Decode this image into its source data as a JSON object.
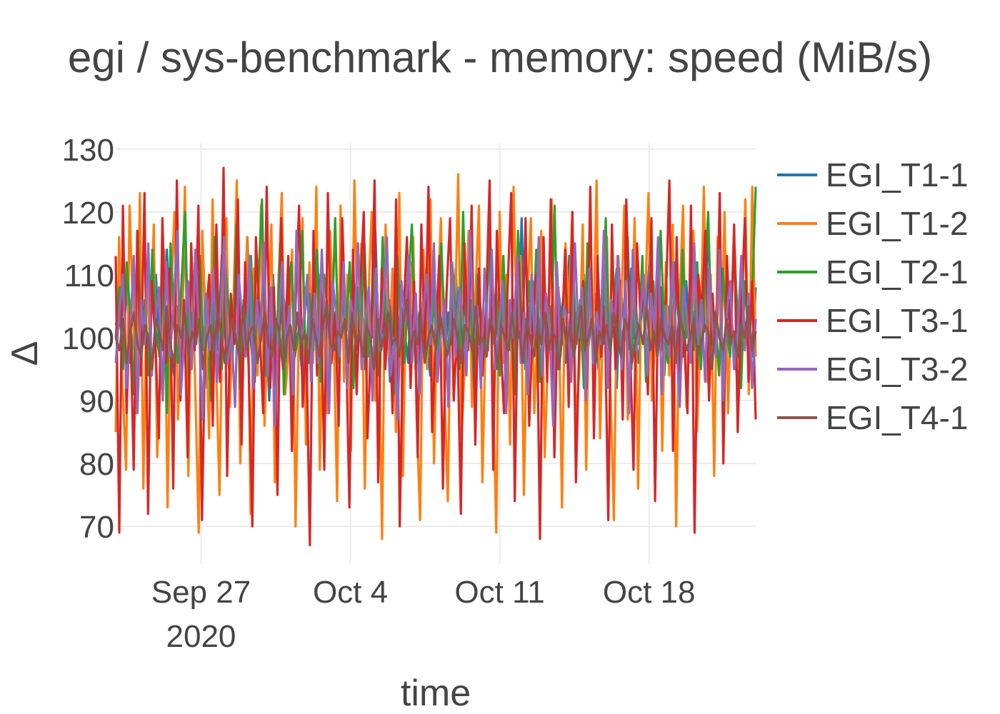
{
  "chart_data": {
    "type": "line",
    "title": "egi / sys-benchmark - memory: speed (MiB/s)",
    "xlabel": "time",
    "ylabel": "Δ",
    "x_range": [
      "2020-09-23",
      "2020-10-23"
    ],
    "ylim": [
      64,
      131
    ],
    "y_ticks": [
      70,
      80,
      90,
      100,
      110,
      120,
      130
    ],
    "y_tick_labels": [
      "70",
      "80",
      "90",
      "100",
      "110",
      "120",
      "130"
    ],
    "x_ticks": [
      "2020-09-27",
      "2020-10-04",
      "2020-10-11",
      "2020-10-18"
    ],
    "x_tick_labels": [
      {
        "line1": "Sep 27",
        "line2": "2020"
      },
      {
        "line1": "Oct 4",
        "line2": ""
      },
      {
        "line1": "Oct 11",
        "line2": ""
      },
      {
        "line1": "Oct 18",
        "line2": ""
      }
    ],
    "grid": true,
    "legend_position": "right",
    "sampling": "approximately every 4 hours, 2020-09-23 00:00 to 2020-10-23 00:00; values approximate",
    "series": [
      {
        "name": "EGI_T1-1",
        "color": "#1f77b4",
        "values": [
          102,
          104,
          98,
          109,
          96,
          101,
          112,
          99,
          103,
          95,
          107,
          110,
          97,
          100,
          114,
          99,
          94,
          105,
          101,
          118,
          96,
          103,
          99,
          108,
          111,
          92,
          101,
          106,
          98,
          113,
          100,
          95,
          104,
          109,
          97,
          102,
          116,
          99,
          93,
          107,
          101,
          104,
          90,
          110,
          98,
          103,
          106,
          96,
          112,
          99,
          101,
          94,
          108,
          102,
          97,
          115,
          100,
          105,
          92,
          109,
          99,
          103,
          111,
          96,
          101,
          107,
          98,
          113,
          95,
          104,
          100,
          117,
          97,
          102,
          108,
          93,
          110,
          99,
          105,
          101,
          96,
          112,
          103,
          98,
          106,
          100,
          94,
          109,
          102,
          115,
          97,
          104,
          99,
          111,
          95,
          103,
          107,
          100,
          92,
          108,
          101,
          97,
          114,
          99,
          104,
          96,
          110,
          102,
          98,
          106,
          100,
          119,
          95,
          103,
          109,
          97,
          101,
          112,
          99,
          105,
          94,
          108,
          102,
          96,
          113,
          100,
          104,
          98,
          110,
          97,
          103,
          107,
          95,
          101,
          116,
          99,
          104,
          92,
          109,
          102,
          98,
          111,
          100,
          96,
          106,
          103,
          113,
          97,
          101,
          108,
          94,
          105,
          99,
          112,
          102,
          97,
          109,
          100,
          104,
          95,
          107,
          101,
          118,
          98,
          103,
          110,
          96,
          102,
          106,
          99,
          93,
          111,
          101,
          104,
          97,
          108
        ]
      },
      {
        "name": "EGI_T1-2",
        "color": "#ff7f0e",
        "values": [
          85,
          116,
          92,
          79,
          121,
          104,
          88,
          123,
          76,
          110,
          98,
          118,
          81,
          95,
          114,
          73,
          107,
          120,
          87,
          101,
          124,
          78,
          112,
          92,
          69,
          117,
          103,
          84,
          122,
          96,
          75,
          109,
          119,
          89,
          105,
          125,
          80,
          99,
          116,
          72,
          111,
          94,
          121,
          86,
          102,
          118,
          77,
          108,
          123,
          91,
          98,
          114,
          70,
          104,
          119,
          83,
          112,
          96,
          124,
          79,
          107,
          88,
          117,
          101,
          74,
          121,
          93,
          110,
          82,
          125,
          99,
          115,
          76,
          106,
          120,
          90,
          103,
          68,
          118,
          97,
          111,
          85,
          123,
          78,
          109,
          100,
          116,
          87,
          71,
          114,
          95,
          122,
          80,
          105,
          119,
          92,
          74,
          112,
          101,
          126,
          84,
          98,
          117,
          89,
          107,
          121,
          77,
          103,
          115,
          93,
          69,
          120,
          96,
          110,
          83,
          124,
          100,
          113,
          75,
          106,
          119,
          88,
          102,
          117,
          81,
          98,
          122,
          91,
          108,
          73,
          115,
          104,
          120,
          86,
          95,
          118,
          79,
          111,
          99,
          125,
          84,
          107,
          116,
          92,
          71,
          113,
          102,
          121,
          87,
          97,
          119,
          76,
          109,
          105,
          123,
          90,
          100,
          115,
          82,
          112,
          94,
          118,
          70,
          106,
          121,
          89,
          103,
          117,
          85,
          99,
          124,
          93,
          110,
          78,
          116,
          98,
          120,
          88,
          107,
          114,
          95,
          101,
          122,
          91,
          124,
          97
        ]
      },
      {
        "name": "EGI_T2-1",
        "color": "#2ca02c",
        "values": [
          100,
          108,
          95,
          112,
          103,
          91,
          117,
          99,
          106,
          94,
          114,
          101,
          97,
          110,
          88,
          115,
          102,
          96,
          109,
          120,
          93,
          104,
          99,
          113,
          98,
          107,
          90,
          116,
          101,
          95,
          111,
          104,
          97,
          118,
          92,
          106,
          100,
          113,
          96,
          109,
          122,
          94,
          103,
          108,
          99,
          115,
          91,
          105,
          112,
          97,
          101,
          117,
          95,
          107,
          98,
          114,
          93,
          110,
          104,
          99,
          119,
          96,
          106,
          101,
          112,
          92,
          108,
          100,
          115,
          97,
          103,
          110,
          94,
          116,
          99,
          105,
          91,
          113,
          102,
          96,
          109,
          118,
          95,
          104,
          100,
          111,
          97,
          107,
          93,
          115,
          101,
          98,
          112,
          104,
          95,
          120,
          99,
          106,
          92,
          110,
          103,
          97,
          116,
          100,
          108,
          94,
          113,
          99,
          105,
          91,
          117,
          102,
          96,
          109,
          100,
          114,
          93,
          107,
          101,
          98,
          121,
          95,
          104,
          110,
          97,
          112,
          99,
          106,
          92,
          115,
          103,
          96,
          108,
          100,
          119,
          94,
          105,
          111,
          98,
          102,
          116,
          95,
          107,
          99,
          113,
          93,
          104,
          109,
          97,
          117,
          101,
          96,
          110,
          103,
          92,
          114,
          100,
          106,
          98,
          112,
          95,
          108,
          120,
          99,
          103,
          94,
          111,
          101,
          97,
          115,
          104,
          92,
          109,
          100,
          106,
          124
        ]
      },
      {
        "name": "EGI_T3-1",
        "color": "#d62728",
        "values": [
          113,
          69,
          121,
          88,
          104,
          79,
          117,
          94,
          123,
          72,
          109,
          100,
          84,
          119,
          96,
          111,
          76,
          125,
          90,
          106,
          81,
          115,
          98,
          121,
          71,
          103,
          110,
          86,
          118,
          93,
          127,
          78,
          107,
          99,
          122,
          83,
          112,
          95,
          70,
          116,
          102,
          88,
          124,
          92,
          108,
          75,
          119,
          97,
          113,
          82,
          105,
          121,
          89,
          100,
          67,
          117,
          94,
          110,
          79,
          123,
          96,
          104,
          86,
          119,
          101,
          73,
          114,
          91,
          108,
          120,
          84,
          99,
          125,
          77,
          111,
          95,
          106,
          88,
          122,
          70,
          103,
          116,
          92,
          109,
          81,
          118,
          97,
          124,
          85,
          100,
          113,
          76,
          107,
          119,
          90,
          102,
          72,
          115,
          98,
          121,
          83,
          111,
          94,
          105,
          125,
          79,
          117,
          100,
          88,
          108,
          123,
          74,
          112,
          96,
          119,
          86,
          103,
          110,
          68,
          116,
          93,
          122,
          81,
          106,
          99,
          114,
          89,
          120,
          77,
          101,
          109,
          92,
          124,
          84,
          113,
          97,
          105,
          71,
          118,
          95,
          111,
          87,
          122,
          100,
          79,
          115,
          103,
          108,
          91,
          119,
          74,
          112,
          98,
          106,
          125,
          82,
          116,
          94,
          101,
          88,
          121,
          69,
          110,
          104,
          117,
          90,
          107,
          97,
          123,
          80,
          113,
          99,
          118,
          85,
          105,
          119,
          93,
          109,
          87
        ]
      },
      {
        "name": "EGI_T3-2",
        "color": "#9467bd",
        "values": [
          96,
          104,
          110,
          92,
          101,
          113,
          88,
          106,
          99,
          115,
          94,
          103,
          108,
          90,
          112,
          97,
          105,
          117,
          91,
          100,
          109,
          95,
          114,
          102,
          87,
          107,
          98,
          111,
          93,
          104,
          116,
          96,
          101,
          89,
          110,
          103,
          97,
          113,
          92,
          106,
          100,
          115,
          94,
          108,
          86,
          102,
          112,
          98,
          105,
          91,
          117,
          99,
          103,
          110,
          93,
          107,
          96,
          114,
          100,
          88,
          109,
          104,
          97,
          112,
          92,
          106,
          101,
          115,
          95,
          103,
          108,
          90,
          111,
          98,
          105,
          116,
          94,
          100,
          87,
          109,
          102,
          113,
          96,
          107,
          91,
          104,
          110,
          99,
          115,
          93,
          101,
          106,
          89,
          112,
          97,
          108,
          103,
          94,
          117,
          100,
          105,
          92,
          111,
          98,
          114,
          95,
          102,
          109,
          88,
          106,
          100,
          113,
          96,
          104,
          91,
          110,
          99,
          116,
          94,
          107,
          101,
          86,
          112,
          97,
          105,
          103,
          93,
          115,
          100,
          108,
          90,
          111,
          96,
          104,
          99,
          117,
          92,
          106,
          102,
          113,
          95,
          109,
          88,
          114,
          98,
          103,
          110,
          94,
          107,
          101,
          116,
          91,
          105,
          97,
          112,
          100,
          89,
          108,
          103,
          96,
          115,
          99,
          106,
          93,
          111,
          102,
          97,
          114,
          90,
          104,
          109,
          95,
          101,
          113,
          98,
          107,
          92,
          103
        ]
      },
      {
        "name": "EGI_T4-1",
        "color": "#8c564b",
        "values": [
          100,
          98,
          103,
          96,
          101,
          104,
          99,
          97,
          102,
          100,
          95,
          103,
          101,
          98,
          105,
          99,
          96,
          102,
          100,
          104,
          97,
          101,
          99,
          103,
          95,
          100,
          102,
          98,
          104,
          101,
          96,
          99,
          103,
          100,
          97,
          105,
          98,
          101,
          102,
          96,
          100,
          104,
          99,
          97,
          103,
          101,
          95,
          100,
          102,
          98,
          104,
          99,
          101,
          96,
          103,
          100,
          97,
          102,
          105,
          99,
          98,
          101,
          100,
          103,
          96,
          104,
          99,
          101,
          97,
          102,
          100,
          95,
          103,
          98,
          101,
          104,
          99,
          100,
          97,
          102,
          106,
          98,
          101,
          99,
          103,
          96,
          100,
          102,
          98,
          104,
          101,
          97,
          99,
          103,
          100,
          96,
          102,
          101,
          98,
          105,
          99,
          100,
          97,
          103,
          101,
          95,
          102,
          100,
          98,
          104,
          99,
          101,
          96,
          103,
          100,
          97,
          102,
          99,
          104,
          98,
          101,
          100,
          95,
          103,
          99,
          102,
          97,
          101,
          105,
          98,
          100,
          103,
          96,
          101,
          99,
          102,
          98,
          104,
          100,
          97,
          103,
          101,
          96,
          100,
          102,
          99,
          105,
          98,
          101,
          97,
          103,
          100,
          99,
          102,
          96,
          104,
          101,
          98,
          100,
          103,
          97,
          99,
          102,
          101,
          95,
          104,
          100,
          98,
          103,
          99,
          101,
          97,
          102,
          100,
          105,
          98,
          101
        ]
      }
    ]
  }
}
